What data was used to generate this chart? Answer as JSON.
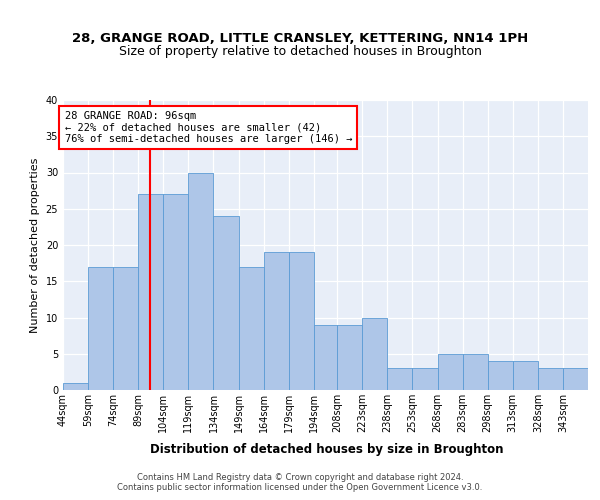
{
  "title1": "28, GRANGE ROAD, LITTLE CRANSLEY, KETTERING, NN14 1PH",
  "title2": "Size of property relative to detached houses in Broughton",
  "xlabel": "Distribution of detached houses by size in Broughton",
  "ylabel": "Number of detached properties",
  "categories": [
    "44sqm",
    "59sqm",
    "74sqm",
    "89sqm",
    "104sqm",
    "119sqm",
    "134sqm",
    "149sqm",
    "164sqm",
    "179sqm",
    "194sqm",
    "208sqm",
    "223sqm",
    "238sqm",
    "253sqm",
    "268sqm",
    "283sqm",
    "298sqm",
    "313sqm",
    "328sqm",
    "343sqm"
  ],
  "values": [
    1,
    17,
    17,
    27,
    27,
    30,
    24,
    17,
    19,
    19,
    9,
    9,
    10,
    3,
    3,
    5,
    5,
    4,
    4,
    3,
    3
  ],
  "bar_color": "#aec6e8",
  "bar_edge_color": "#5b9bd5",
  "vline_x": 96,
  "vline_color": "red",
  "annotation_text": "28 GRANGE ROAD: 96sqm\n← 22% of detached houses are smaller (42)\n76% of semi-detached houses are larger (146) →",
  "annotation_box_color": "white",
  "annotation_box_edge": "red",
  "ylim": [
    0,
    40
  ],
  "yticks": [
    0,
    5,
    10,
    15,
    20,
    25,
    30,
    35,
    40
  ],
  "background_color": "#e8eef8",
  "footer1": "Contains HM Land Registry data © Crown copyright and database right 2024.",
  "footer2": "Contains public sector information licensed under the Open Government Licence v3.0.",
  "title1_fontsize": 9.5,
  "title2_fontsize": 9,
  "tick_fontsize": 7,
  "xlabel_fontsize": 8.5,
  "ylabel_fontsize": 8,
  "footer_fontsize": 6,
  "bin_edges": [
    44,
    59,
    74,
    89,
    104,
    119,
    134,
    149,
    164,
    179,
    194,
    208,
    223,
    238,
    253,
    268,
    283,
    298,
    313,
    328,
    343,
    358
  ]
}
